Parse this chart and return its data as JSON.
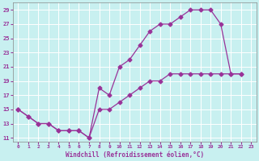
{
  "xlabel": "Windchill (Refroidissement éolien,°C)",
  "bg_color": "#c8f0f0",
  "line_color": "#993399",
  "xlim_min": -0.5,
  "xlim_max": 23.5,
  "ylim_min": 10.5,
  "ylim_max": 30.0,
  "xticks": [
    0,
    1,
    2,
    3,
    4,
    5,
    6,
    7,
    8,
    9,
    10,
    11,
    12,
    13,
    14,
    15,
    16,
    17,
    18,
    19,
    20,
    21,
    22,
    23
  ],
  "yticks": [
    11,
    13,
    15,
    17,
    19,
    21,
    23,
    25,
    27,
    29
  ],
  "curve_upper_x": [
    0,
    1,
    2,
    3,
    4,
    5,
    6,
    7,
    8,
    9,
    10,
    11,
    12,
    13,
    14,
    15,
    16,
    17,
    18,
    19,
    20,
    21,
    22
  ],
  "curve_upper_y": [
    15,
    14,
    13,
    13,
    12,
    12,
    12,
    11,
    18,
    17,
    21,
    22,
    24,
    26,
    27,
    27,
    28,
    29,
    29,
    29,
    27,
    20,
    20
  ],
  "curve_lower_x": [
    0,
    1,
    2,
    3,
    4,
    5,
    6,
    7,
    8,
    9,
    10,
    11,
    12,
    13,
    14,
    15,
    16,
    17,
    18,
    19,
    20,
    21,
    22
  ],
  "curve_lower_y": [
    15,
    14,
    13,
    13,
    12,
    12,
    12,
    11,
    15,
    15,
    16,
    17,
    18,
    19,
    19,
    20,
    20,
    20,
    20,
    20,
    20,
    20,
    20
  ],
  "marker": "D",
  "markersize": 2.5,
  "linewidth": 0.9
}
